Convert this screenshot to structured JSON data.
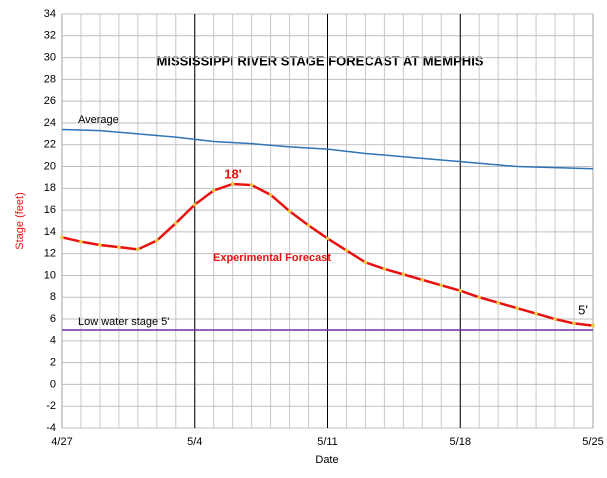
{
  "chart_data": {
    "type": "line",
    "title": "MISSISSIPPI RIVER  STAGE FORECAST AT MEMPHIS",
    "x_label": "Date",
    "y_label": "Stage (feet)",
    "xlim": [
      0,
      28
    ],
    "xticks": [
      {
        "value": 0,
        "label": "4/27"
      },
      {
        "value": 7,
        "label": "5/4"
      },
      {
        "value": 14,
        "label": "5/11"
      },
      {
        "value": 21,
        "label": "5/18"
      },
      {
        "value": 28,
        "label": "5/25"
      }
    ],
    "ylim": [
      -4,
      34
    ],
    "yticks": [
      -4,
      -2,
      0,
      2,
      4,
      6,
      8,
      10,
      12,
      14,
      16,
      18,
      20,
      22,
      24,
      26,
      28,
      30,
      32,
      34
    ],
    "grid": true,
    "series": [
      {
        "name": "Average",
        "color": "#2e75b6",
        "markers": false,
        "x": [
          0,
          2,
          4,
          6,
          8,
          10,
          12,
          14,
          16,
          18,
          20,
          22,
          24,
          26,
          28
        ],
        "values": [
          23.4,
          23.3,
          23.0,
          22.7,
          22.3,
          22.1,
          21.8,
          21.6,
          21.2,
          20.9,
          20.6,
          20.3,
          20.0,
          19.9,
          19.8
        ]
      },
      {
        "name": "Experimental Forecast",
        "color": "#e8110f",
        "marker_color": "#e8c840",
        "markers": true,
        "x": [
          0,
          1,
          2,
          3,
          4,
          5,
          6,
          7,
          8,
          9,
          10,
          11,
          12,
          13,
          14,
          15,
          16,
          17,
          18,
          19,
          20,
          21,
          22,
          23,
          24,
          25,
          26,
          27,
          28
        ],
        "values": [
          13.5,
          13.1,
          12.8,
          12.6,
          12.4,
          13.2,
          14.8,
          16.5,
          17.8,
          18.4,
          18.3,
          17.4,
          15.9,
          14.6,
          13.4,
          12.3,
          11.2,
          10.6,
          10.1,
          9.6,
          9.1,
          8.6,
          8.0,
          7.5,
          7.0,
          6.5,
          6.0,
          5.6,
          5.4
        ]
      },
      {
        "name": "Low water stage 5'",
        "color": "#7030a0",
        "markers": false,
        "x": [
          0,
          28
        ],
        "values": [
          5,
          5
        ]
      }
    ],
    "annotations": [
      "18'",
      "5'"
    ]
  }
}
